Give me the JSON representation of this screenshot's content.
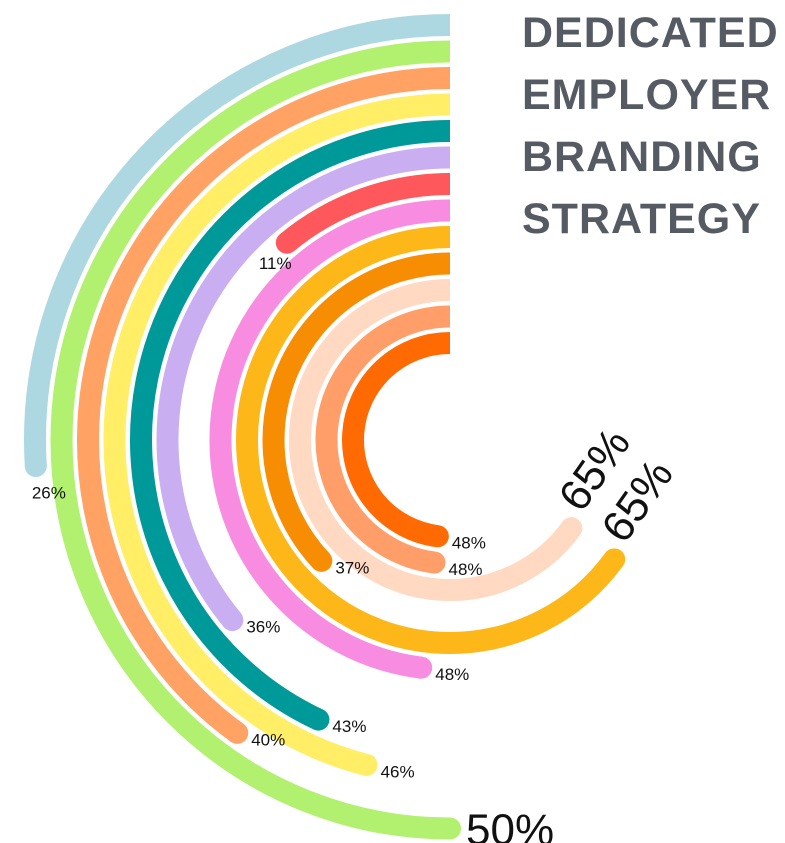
{
  "title_lines": [
    "DEDICATED",
    "EMPLOYER",
    "BRANDING",
    "STRATEGY"
  ],
  "chart_data": {
    "type": "radial-bar",
    "scale_max_percent": 100,
    "unit": "%",
    "series": [
      {
        "label": "26%",
        "value": 26,
        "color": "#add8e2",
        "label_size": "small"
      },
      {
        "label": "50%",
        "value": 50,
        "color": "#b2f06f",
        "label_size": "large"
      },
      {
        "label": "40%",
        "value": 40,
        "color": "#ffa263",
        "label_size": "small"
      },
      {
        "label": "46%",
        "value": 46,
        "color": "#ffee66",
        "label_size": "small"
      },
      {
        "label": "43%",
        "value": 43,
        "color": "#009999",
        "label_size": "small"
      },
      {
        "label": "36%",
        "value": 36,
        "color": "#c9aef2",
        "label_size": "small"
      },
      {
        "label": "11%",
        "value": 11,
        "color": "#ff585c",
        "label_size": "small"
      },
      {
        "label": "48%",
        "value": 48,
        "color": "#f78ce1",
        "label_size": "small"
      },
      {
        "label": "65%",
        "value": 65,
        "color": "#fdb719",
        "label_size": "large"
      },
      {
        "label": "37%",
        "value": 37,
        "color": "#f78d02",
        "label_size": "small"
      },
      {
        "label": "65%",
        "value": 65,
        "color": "#ffd9c2",
        "label_size": "large"
      },
      {
        "label": "48%",
        "value": 48,
        "color": "#ff9e68",
        "label_size": "small"
      },
      {
        "label": "48%",
        "value": 48,
        "color": "#ff6a02",
        "label_size": "small"
      }
    ]
  }
}
